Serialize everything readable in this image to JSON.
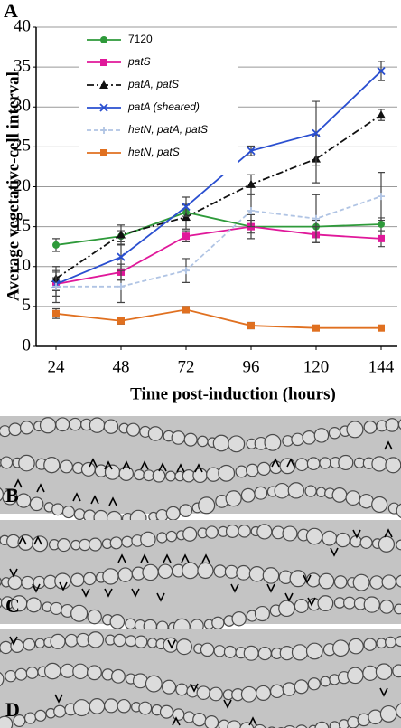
{
  "chart_data": {
    "type": "line",
    "panel_label": "A",
    "y_label": "Average vegetative-cell interval",
    "x_label": "Time post-induction (hours)",
    "categories": [
      "24",
      "48",
      "72",
      "96",
      "120",
      "144"
    ],
    "ylim": [
      0,
      40
    ],
    "yticks": [
      0,
      5,
      10,
      15,
      20,
      25,
      30,
      35,
      40
    ],
    "grid": true,
    "legend": "upper left",
    "series": [
      {
        "name": "7120",
        "color": "#2e9a3a",
        "marker": "circle",
        "dash": "solid",
        "values": [
          12.7,
          13.8,
          16.8,
          15,
          15,
          15.3
        ],
        "errors": [
          0.8,
          0.7,
          1,
          0.8,
          0.8,
          0.8
        ]
      },
      {
        "name": "patS",
        "color": "#e0189a",
        "marker": "square",
        "dash": "solid",
        "values": [
          7.8,
          9.3,
          13.8,
          15,
          14,
          13.5
        ],
        "errors": [
          0.8,
          1,
          0.7,
          1.5,
          1,
          1
        ]
      },
      {
        "name": "patA, patS",
        "color": "#111111",
        "marker": "triangle",
        "dash": "dashdot",
        "values": [
          8.5,
          14,
          16.2,
          20.3,
          23.5,
          29
        ],
        "errors": [
          1.5,
          1.2,
          1.5,
          1.2,
          3,
          0.7
        ]
      },
      {
        "name": "patA (sheared)",
        "color": "#2a4fd0",
        "marker": "x",
        "dash": "solid",
        "values": [
          7.8,
          11.2,
          17.5,
          24.5,
          26.7,
          34.5
        ],
        "errors": [
          1.5,
          1.5,
          1.2,
          0.6,
          4,
          1.2
        ]
      },
      {
        "name": "hetN, patA, patS",
        "color": "#b0c4e4",
        "marker": "plus",
        "dash": "dashed",
        "values": [
          7.5,
          7.5,
          9.5,
          17,
          16,
          18.8
        ],
        "errors": [
          2,
          2,
          1.5,
          2,
          3,
          3
        ]
      },
      {
        "name": "hetN, patS",
        "color": "#e07020",
        "marker": "square",
        "dash": "solid",
        "values": [
          4.1,
          3.2,
          4.6,
          2.6,
          2.3,
          2.3
        ],
        "errors": [
          0.6,
          0.4,
          0.4,
          0.4,
          0.3,
          0.3
        ]
      }
    ]
  },
  "micrographs": [
    "B",
    "C",
    "D"
  ]
}
